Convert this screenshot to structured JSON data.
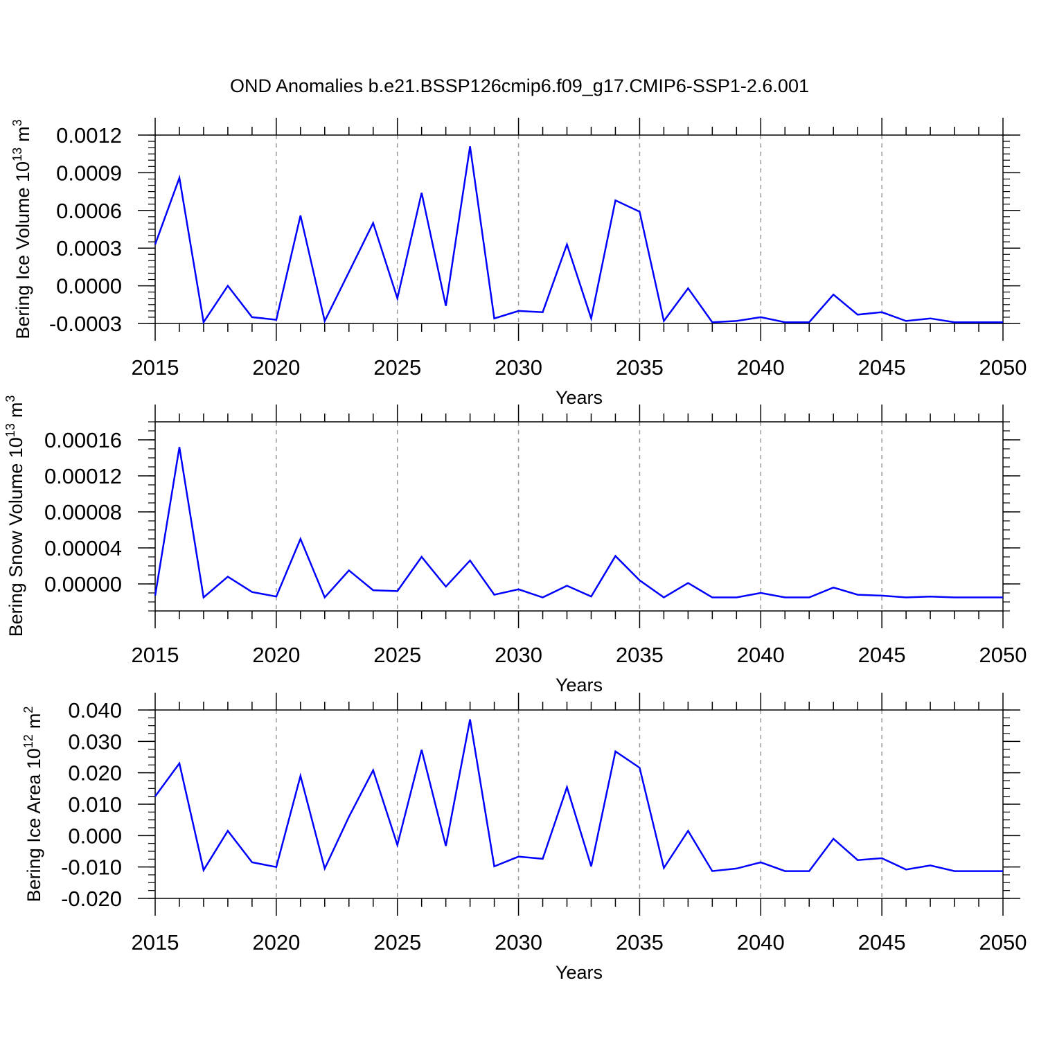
{
  "title": "OND Anomalies b.e21.BSSP126cmip6.f09_g17.CMIP6-SSP1-2.6.001",
  "colors": {
    "line": "#0000ff",
    "axis": "#000000",
    "grid": "#9a9a9a"
  },
  "chart_data": [
    {
      "type": "line",
      "xlabel": "Years",
      "ylabel": "Bering Ice Volume 10",
      "ylabel_exponent": "13",
      "ylabel_unit": "m",
      "ylabel_unit_exponent": "3",
      "xlim": [
        2015,
        2050
      ],
      "ylim": [
        -0.0003,
        0.0012
      ],
      "xticks": [
        "2015",
        "2020",
        "2025",
        "2030",
        "2035",
        "2040",
        "2045",
        "2050"
      ],
      "yticks": [
        "-0.0003",
        "0.0000",
        "0.0003",
        "0.0006",
        "0.0009",
        "0.0012"
      ],
      "grid": "dashed vertical at major x ticks",
      "x": [
        2015,
        2016,
        2017,
        2018,
        2019,
        2020,
        2021,
        2022,
        2023,
        2024,
        2025,
        2026,
        2027,
        2028,
        2029,
        2030,
        2031,
        2032,
        2033,
        2034,
        2035,
        2036,
        2037,
        2038,
        2039,
        2040,
        2041,
        2042,
        2043,
        2044,
        2045,
        2046,
        2047,
        2048,
        2049,
        2050
      ],
      "series": [
        {
          "values": [
            0.00033,
            0.00086,
            -0.00029,
            0.0,
            -0.00025,
            -0.00027,
            0.00056,
            -0.00028,
            0.00011,
            0.0005,
            -0.0001,
            0.00074,
            -0.00016,
            0.00111,
            -0.00026,
            -0.0002,
            -0.00021,
            0.00033,
            -0.00026,
            0.00068,
            0.00059,
            -0.00028,
            -2e-05,
            -0.00029,
            -0.00028,
            -0.00025,
            -0.00029,
            -0.00029,
            -7e-05,
            -0.00023,
            -0.00021,
            -0.00028,
            -0.00026,
            -0.00029,
            -0.00029,
            -0.00029
          ]
        }
      ]
    },
    {
      "type": "line",
      "xlabel": "Years",
      "ylabel": "Bering Snow Volume 10",
      "ylabel_exponent": "13",
      "ylabel_unit": "m",
      "ylabel_unit_exponent": "3",
      "xlim": [
        2015,
        2050
      ],
      "ylim": [
        -3e-05,
        0.00018
      ],
      "xticks": [
        "2015",
        "2020",
        "2025",
        "2030",
        "2035",
        "2040",
        "2045",
        "2050"
      ],
      "yticks": [
        "0.00000",
        "0.00004",
        "0.00008",
        "0.00012",
        "0.00016"
      ],
      "grid": "dashed vertical at major x ticks",
      "x": [
        2015,
        2016,
        2017,
        2018,
        2019,
        2020,
        2021,
        2022,
        2023,
        2024,
        2025,
        2026,
        2027,
        2028,
        2029,
        2030,
        2031,
        2032,
        2033,
        2034,
        2035,
        2036,
        2037,
        2038,
        2039,
        2040,
        2041,
        2042,
        2043,
        2044,
        2045,
        2046,
        2047,
        2048,
        2049,
        2050
      ],
      "series": [
        {
          "values": [
            -1.3e-05,
            0.000152,
            -1.5e-05,
            8e-06,
            -9e-06,
            -1.4e-05,
            5e-05,
            -1.5e-05,
            1.5e-05,
            -7e-06,
            -8e-06,
            3e-05,
            -3e-06,
            2.6e-05,
            -1.2e-05,
            -6e-06,
            -1.5e-05,
            -2e-06,
            -1.4e-05,
            3.1e-05,
            4e-06,
            -1.5e-05,
            1e-06,
            -1.5e-05,
            -1.5e-05,
            -1e-05,
            -1.5e-05,
            -1.5e-05,
            -4e-06,
            -1.2e-05,
            -1.3e-05,
            -1.5e-05,
            -1.4e-05,
            -1.5e-05,
            -1.5e-05,
            -1.5e-05
          ]
        }
      ]
    },
    {
      "type": "line",
      "xlabel": "Years",
      "ylabel": "Bering Ice Area 10",
      "ylabel_exponent": "12",
      "ylabel_unit": "m",
      "ylabel_unit_exponent": "2",
      "xlim": [
        2015,
        2050
      ],
      "ylim": [
        -0.02,
        0.04
      ],
      "xticks": [
        "2015",
        "2020",
        "2025",
        "2030",
        "2035",
        "2040",
        "2045",
        "2050"
      ],
      "yticks": [
        "-0.020",
        "-0.010",
        "0.000",
        "0.010",
        "0.020",
        "0.030",
        "0.040"
      ],
      "grid": "dashed vertical at major x ticks",
      "x": [
        2015,
        2016,
        2017,
        2018,
        2019,
        2020,
        2021,
        2022,
        2023,
        2024,
        2025,
        2026,
        2027,
        2028,
        2029,
        2030,
        2031,
        2032,
        2033,
        2034,
        2035,
        2036,
        2037,
        2038,
        2039,
        2040,
        2041,
        2042,
        2043,
        2044,
        2045,
        2046,
        2047,
        2048,
        2049,
        2050
      ],
      "series": [
        {
          "values": [
            0.0125,
            0.023,
            -0.011,
            0.0015,
            -0.0085,
            -0.01,
            0.019,
            -0.0105,
            0.006,
            0.0208,
            -0.003,
            0.0273,
            -0.0033,
            0.037,
            -0.0098,
            -0.0067,
            -0.0074,
            0.0154,
            -0.0098,
            0.0268,
            0.0216,
            -0.0103,
            0.0015,
            -0.0113,
            -0.0105,
            -0.0085,
            -0.0113,
            -0.0113,
            -0.001,
            -0.0078,
            -0.0072,
            -0.0108,
            -0.0095,
            -0.0113,
            -0.0113,
            -0.0113
          ]
        }
      ]
    }
  ]
}
